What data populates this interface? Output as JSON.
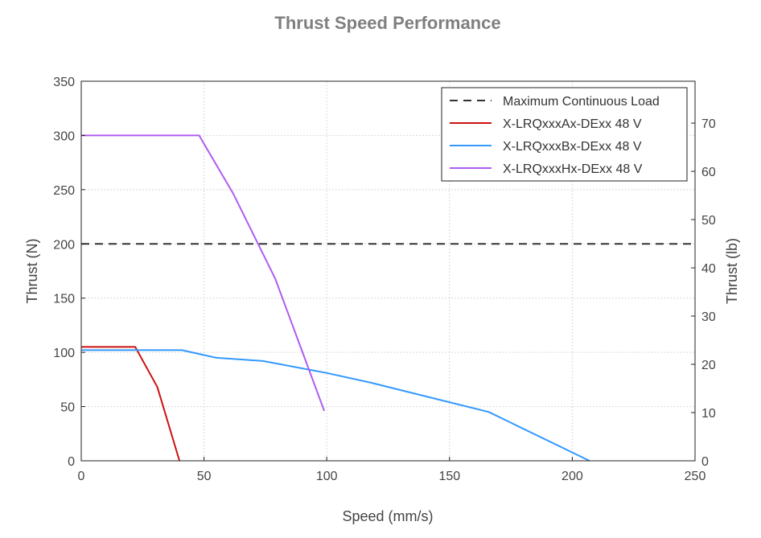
{
  "chart_data": {
    "type": "line",
    "title": "Thrust Speed Performance",
    "xlabel": "Speed (mm/s)",
    "ylabel": "Thrust (N)",
    "y2label": "Thrust (lb)",
    "xlim": [
      0,
      250
    ],
    "ylim": [
      0,
      350
    ],
    "y2lim": [
      0,
      78.68
    ],
    "x_ticks": [
      0,
      50,
      100,
      150,
      200,
      250
    ],
    "y_ticks": [
      0,
      50,
      100,
      150,
      200,
      250,
      300,
      350
    ],
    "y2_ticks": [
      0,
      10,
      20,
      30,
      40,
      50,
      60,
      70
    ],
    "grid": true,
    "legend_position": "top-right",
    "series": [
      {
        "name": "Maximum Continuous Load",
        "style": "dashed",
        "color": "#333333",
        "points": [
          [
            0,
            200
          ],
          [
            250,
            200
          ]
        ]
      },
      {
        "name": "X-LRQxxxAx-DExx 48 V",
        "style": "solid",
        "color": "#cc1111",
        "points": [
          [
            0,
            105
          ],
          [
            22,
            105
          ],
          [
            31,
            68
          ],
          [
            40,
            0
          ]
        ]
      },
      {
        "name": "X-LRQxxxBx-DExx 48 V",
        "style": "solid",
        "color": "#3399ff",
        "points": [
          [
            0,
            102
          ],
          [
            41,
            102
          ],
          [
            55,
            95
          ],
          [
            74,
            92
          ],
          [
            100,
            81
          ],
          [
            118,
            72
          ],
          [
            166,
            45
          ],
          [
            207,
            0
          ]
        ]
      },
      {
        "name": "X-LRQxxxHx-DExx 48 V",
        "style": "solid",
        "color": "#b05cf0",
        "points": [
          [
            0,
            300
          ],
          [
            48,
            300
          ],
          [
            62,
            246
          ],
          [
            79,
            168
          ],
          [
            99,
            46
          ]
        ]
      }
    ]
  }
}
